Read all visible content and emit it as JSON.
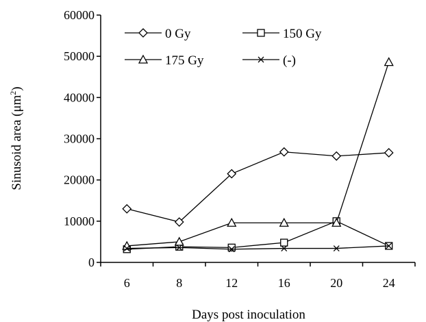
{
  "chart_data": {
    "type": "line",
    "xlabel": "Days post inoculation",
    "ylabel_main": "Sinusoid area (μm",
    "ylabel_sup": "2",
    "ylabel_end": ")",
    "categories": [
      "6",
      "8",
      "12",
      "16",
      "20",
      "24"
    ],
    "ylim": [
      0,
      60000
    ],
    "yticks": [
      0,
      10000,
      20000,
      30000,
      40000,
      50000,
      60000
    ],
    "grid": false,
    "legend_position": "top-left",
    "series": [
      {
        "name": "0 Gy",
        "marker": "diamond",
        "values": [
          13000,
          9800,
          21500,
          26800,
          25800,
          26600
        ]
      },
      {
        "name": "150 Gy",
        "marker": "square",
        "values": [
          3200,
          3800,
          3600,
          4800,
          10000,
          4000
        ]
      },
      {
        "name": "175 Gy",
        "marker": "triangle",
        "values": [
          4000,
          5000,
          9600,
          9600,
          9600,
          48600
        ]
      },
      {
        "name": "(-)",
        "marker": "x",
        "values": [
          3400,
          3600,
          3200,
          3400,
          3400,
          4000
        ]
      }
    ]
  }
}
